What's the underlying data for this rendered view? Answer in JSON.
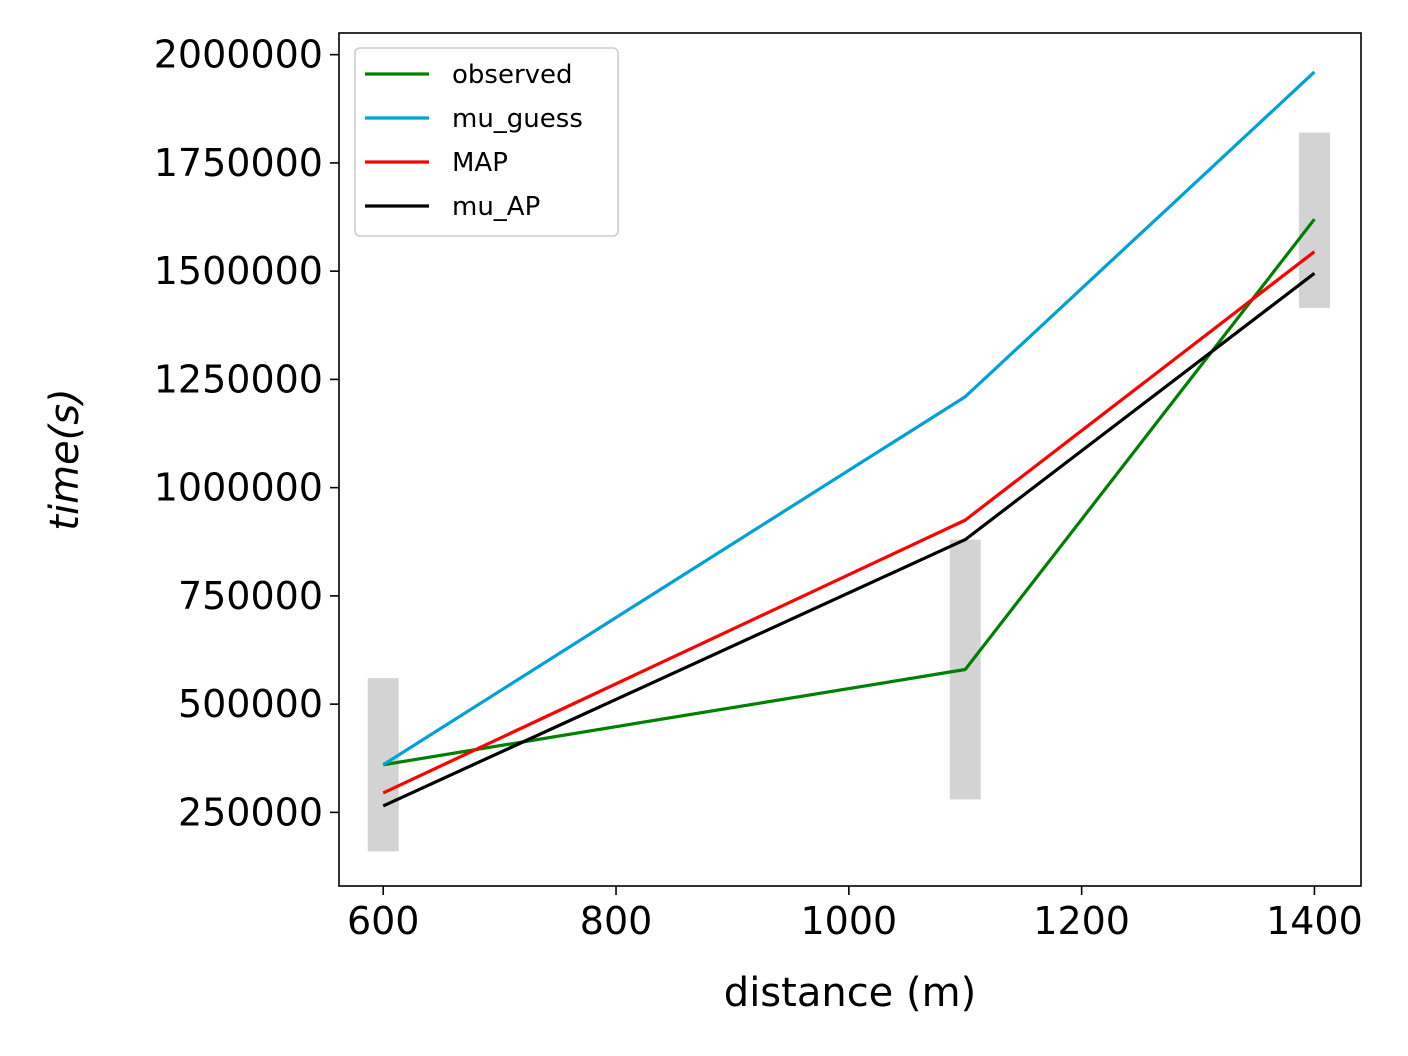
{
  "chart_data": {
    "type": "line",
    "xlabel": "distance (m)",
    "ylabel": "time(s)",
    "xlim": [
      562,
      1440
    ],
    "ylim": [
      80000,
      2050000
    ],
    "xticks": [
      600,
      800,
      1000,
      1200,
      1400
    ],
    "yticks": [
      250000,
      500000,
      750000,
      1000000,
      1250000,
      1500000,
      1750000,
      2000000
    ],
    "x": [
      600,
      1100,
      1400
    ],
    "series": [
      {
        "name": "observed",
        "color": "#008000",
        "values": [
          360000,
          580000,
          1620000
        ]
      },
      {
        "name": "mu_guess",
        "color": "#00a0d8",
        "values": [
          360000,
          1210000,
          1960000
        ]
      },
      {
        "name": "MAP",
        "color": "#ff0000",
        "values": [
          295000,
          925000,
          1545000
        ]
      },
      {
        "name": "mu_AP",
        "color": "#000000",
        "values": [
          265000,
          880000,
          1495000
        ]
      }
    ],
    "error_bars": {
      "color": "#d3d3d3",
      "x": [
        600,
        1100,
        1400
      ],
      "low": [
        160000,
        280000,
        1415000
      ],
      "high": [
        560000,
        880000,
        1820000
      ]
    },
    "legend_position": "top-left",
    "grid": false
  }
}
